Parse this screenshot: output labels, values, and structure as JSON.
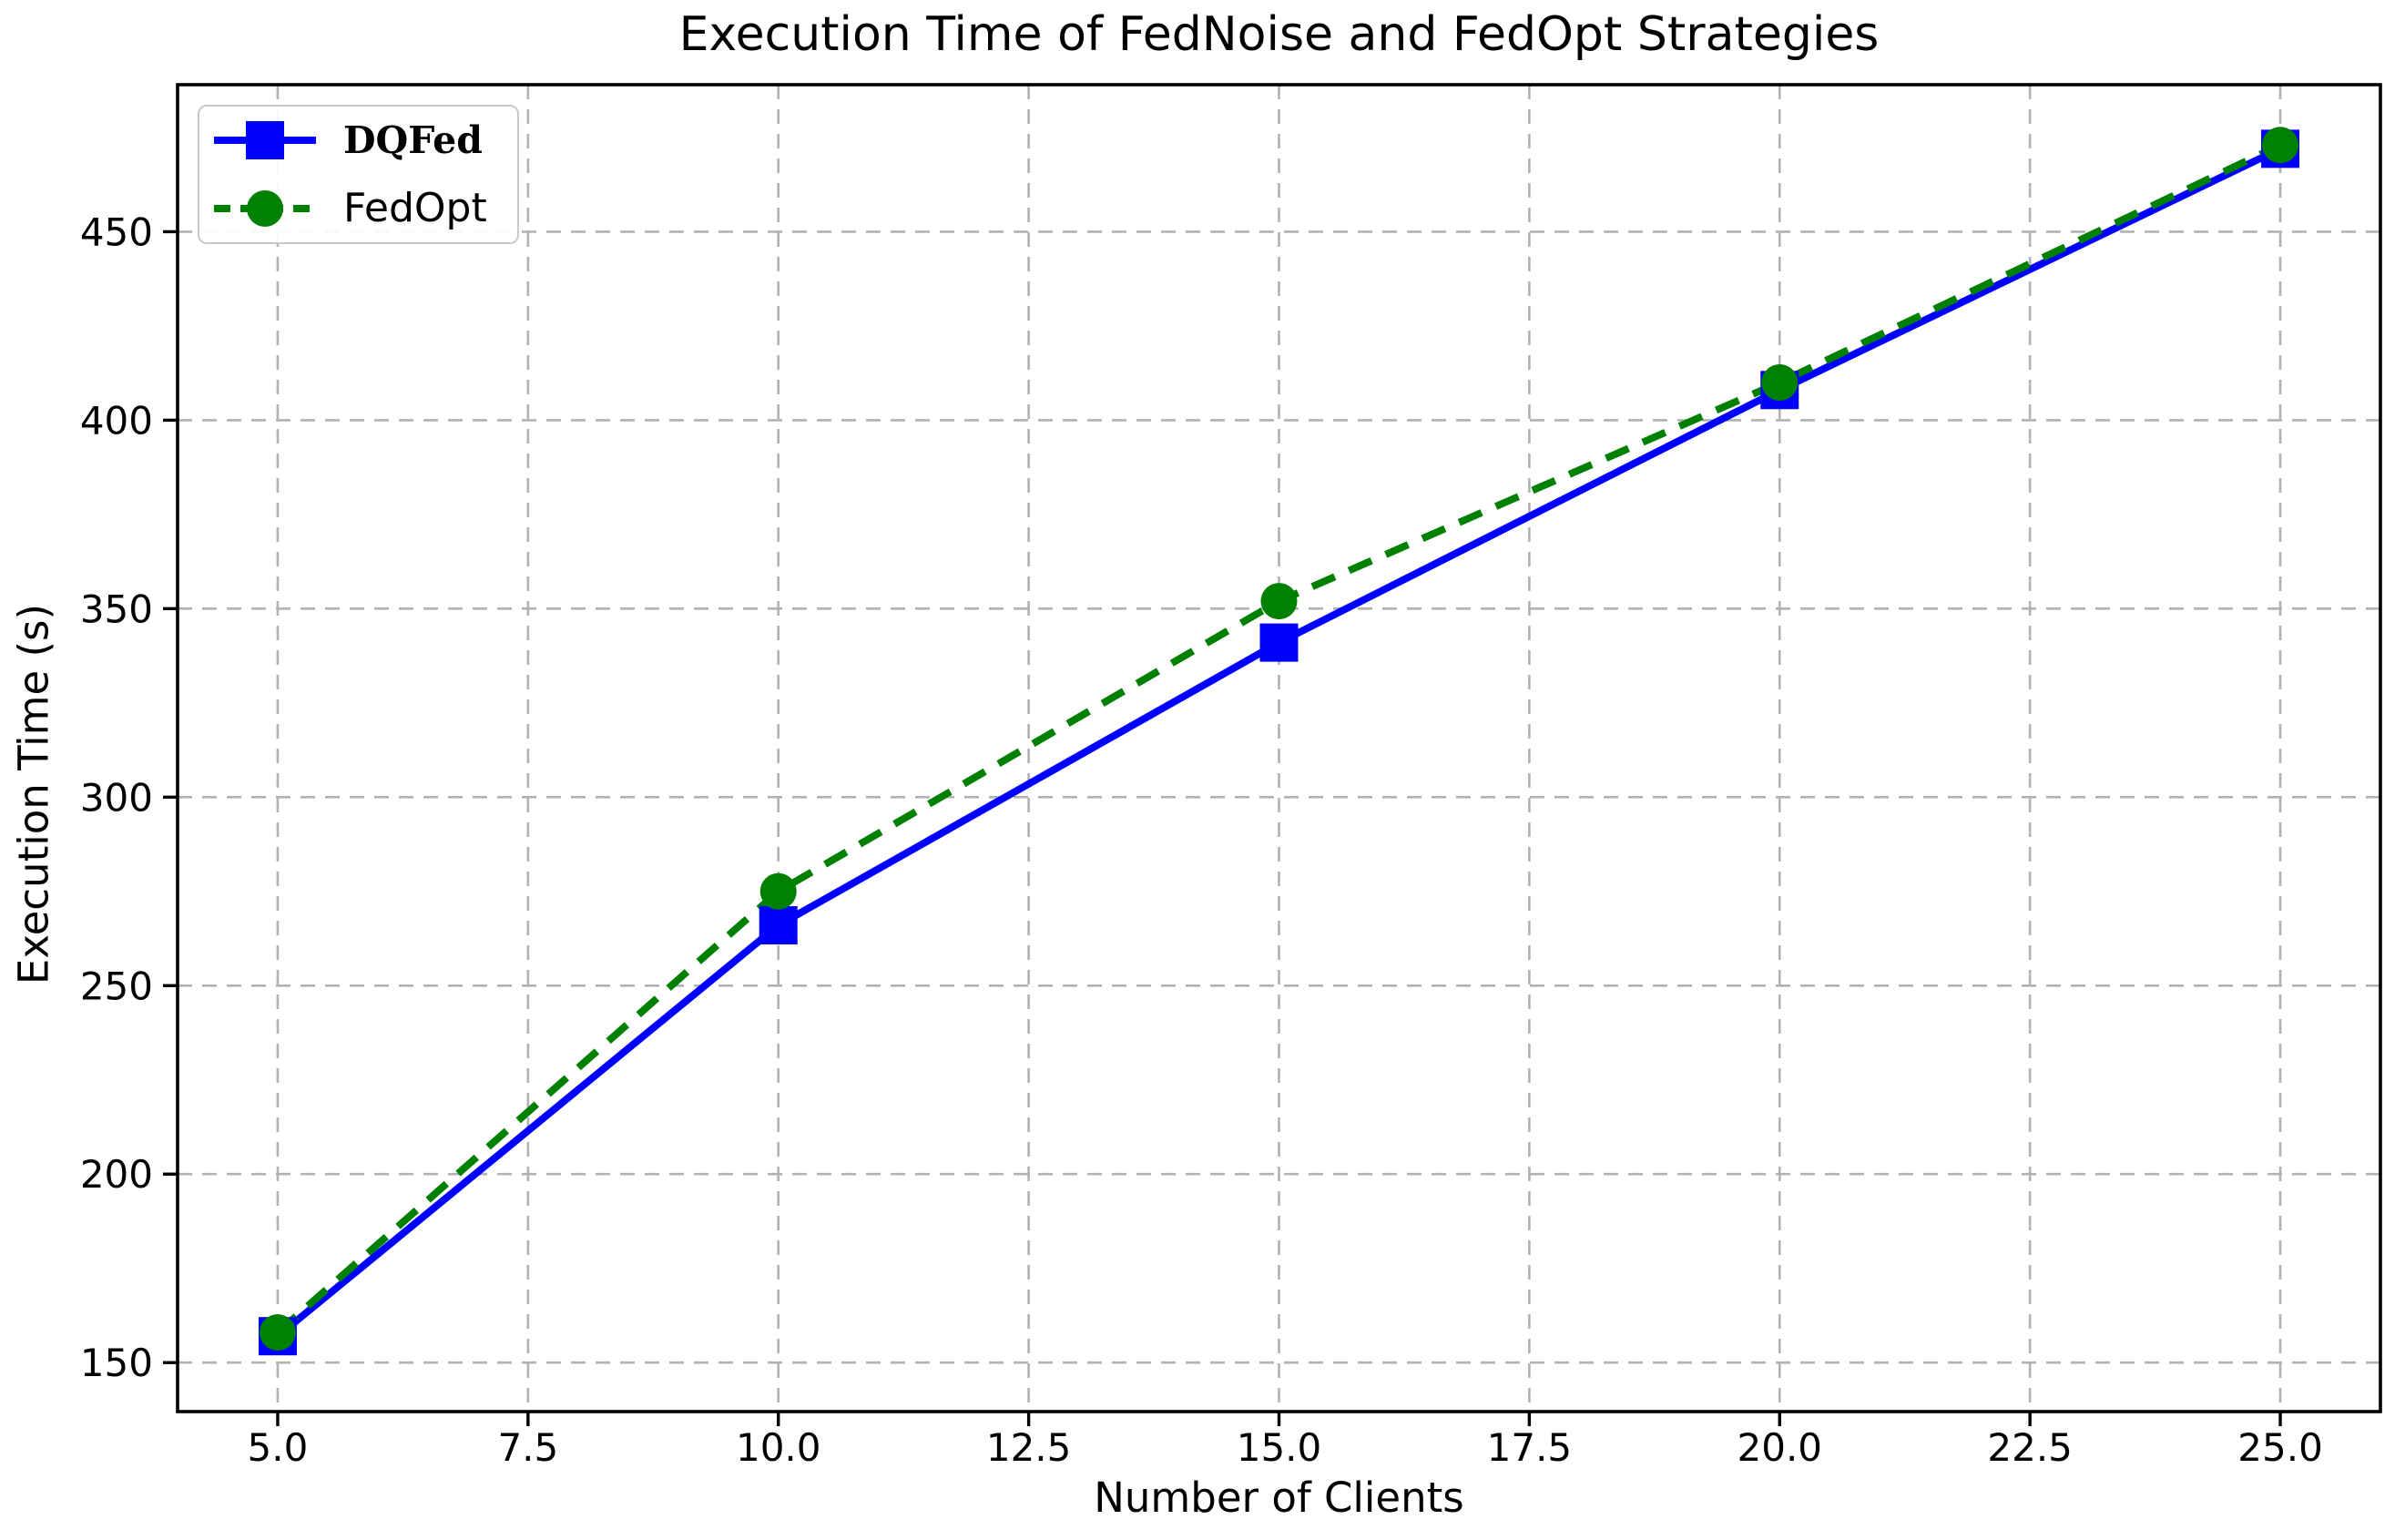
{
  "figure": {
    "title": "Execution Time of FedNoise and FedOpt Strategies",
    "xlabel": "Number of Clients",
    "ylabel": "Execution Time (s)"
  },
  "legend": {
    "position": "upper left",
    "items": [
      {
        "label": "DQFed",
        "color": "#0000ff",
        "marker": "square",
        "linestyle": "solid",
        "bold": true
      },
      {
        "label": "FedOpt",
        "color": "#008000",
        "marker": "circle",
        "linestyle": "dashed",
        "bold": false
      }
    ]
  },
  "chart_data": {
    "type": "line",
    "title": "Execution Time of FedNoise and FedOpt Strategies",
    "xlabel": "Number of Clients",
    "ylabel": "Execution Time (s)",
    "x": [
      5,
      10,
      15,
      20,
      25
    ],
    "series": [
      {
        "name": "DQFed",
        "values": [
          157,
          266,
          341,
          408,
          472
        ],
        "color": "#0000ff",
        "linestyle": "solid",
        "marker": "square"
      },
      {
        "name": "FedOpt",
        "values": [
          158,
          275,
          352,
          410,
          473
        ],
        "color": "#008000",
        "linestyle": "dashed",
        "marker": "circle"
      }
    ],
    "xlim": [
      4,
      26
    ],
    "ylim": [
      137,
      489
    ],
    "xticks": [
      5,
      7.5,
      10,
      12.5,
      15,
      17.5,
      20,
      22.5,
      25
    ],
    "xtick_labels": [
      "5.0",
      "7.5",
      "10.0",
      "12.5",
      "15.0",
      "17.5",
      "20.0",
      "22.5",
      "25.0"
    ],
    "yticks": [
      150,
      200,
      250,
      300,
      350,
      400,
      450
    ],
    "ytick_labels": [
      "150",
      "200",
      "250",
      "300",
      "350",
      "400",
      "450"
    ],
    "grid": true,
    "grid_style": "dashed",
    "legend_position": "upper left",
    "colors": {
      "grid": "#b2b2b2",
      "spine": "#000000",
      "background": "#ffffff",
      "tick_text": "#000000"
    }
  }
}
